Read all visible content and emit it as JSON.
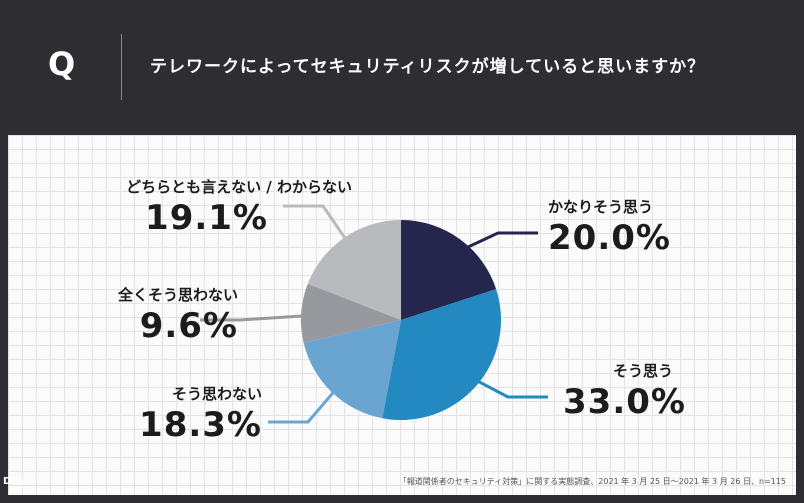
{
  "header": {
    "q_mark": "Q",
    "question": "テレワークによってセキュリティリスクが増していると思いますか？"
  },
  "chart_data": {
    "type": "pie",
    "title": "テレワークによってセキュリティリスクが増していると思いますか？",
    "slices": [
      {
        "label": "かなりそう思う",
        "value": 20.0,
        "display": "20.0%",
        "color": "#25264e"
      },
      {
        "label": "そう思う",
        "value": 33.0,
        "display": "33.0%",
        "color": "#2389c0"
      },
      {
        "label": "そう思わない",
        "value": 18.3,
        "display": "18.3%",
        "color": "#6aa4d1"
      },
      {
        "label": "全くそう思わない",
        "value": 9.6,
        "display": "9.6%",
        "color": "#97999e"
      },
      {
        "label": "どちらとも言えない / わからない",
        "value": 19.1,
        "display": "19.1%",
        "color": "#b9babe"
      }
    ],
    "leader_colors": [
      "#25264e",
      "#2389c0",
      "#6aa4d1",
      "#97999e",
      "#b9babe"
    ]
  },
  "footnote": "「報道関係者のセキュリティ対策」に関する実態調査、2021 年 3 月 25 日～2021 年 3 月 26 日、n=115",
  "logo": "DDS"
}
